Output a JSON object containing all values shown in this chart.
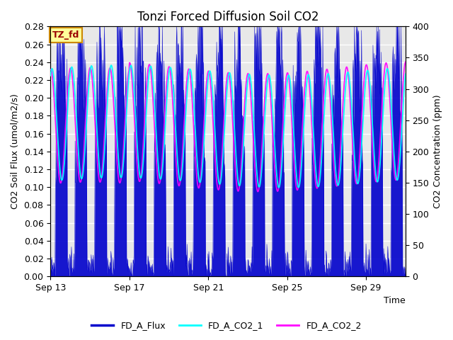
{
  "title": "Tonzi Forced Diffusion Soil CO2",
  "xlabel": "Time",
  "ylabel_left": "CO2 Soil Flux (umol/m2/s)",
  "ylabel_right": "CO2 Concentration (ppm)",
  "ylim_left": [
    0.0,
    0.28
  ],
  "ylim_right": [
    0,
    400
  ],
  "yticks_left": [
    0.0,
    0.02,
    0.04,
    0.06,
    0.08,
    0.1,
    0.12,
    0.14,
    0.16,
    0.18,
    0.2,
    0.22,
    0.24,
    0.26,
    0.28
  ],
  "yticks_right": [
    0,
    50,
    100,
    150,
    200,
    250,
    300,
    350,
    400
  ],
  "xtick_labels": [
    "Sep 13",
    "Sep 17",
    "Sep 21",
    "Sep 25",
    "Sep 29"
  ],
  "xtick_positions": [
    0,
    4,
    8,
    12,
    16
  ],
  "n_days": 18,
  "color_flux": "#0000cc",
  "color_co2_1": "#00ffff",
  "color_co2_2": "#ff00ff",
  "legend_label_flux": "FD_A_Flux",
  "legend_label_co2_1": "FD_A_CO2_1",
  "legend_label_co2_2": "FD_A_CO2_2",
  "tag_text": "TZ_fd",
  "tag_bg": "#ffff99",
  "tag_border": "#cc8800",
  "tag_text_color": "#990000",
  "background_color": "#ffffff",
  "plot_bg_color": "#e8e8e8",
  "grid_color": "#ffffff",
  "title_fontsize": 12,
  "axis_label_fontsize": 9,
  "tick_fontsize": 9,
  "legend_fontsize": 9,
  "co2_peak_ppm": 330,
  "co2_trough_ppm": 150,
  "flux_day_max": 0.2,
  "flux_noise_scale": 0.06
}
